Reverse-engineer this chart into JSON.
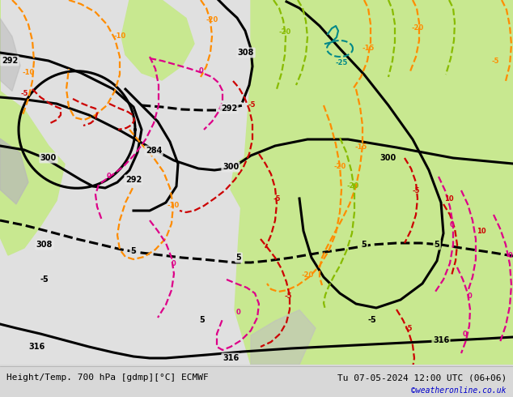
{
  "title_left": "Height/Temp. 700 hPa [gdmp][°C] ECMWF",
  "title_right": "Tu 07-05-2024 12:00 UTC (06+06)",
  "watermark": "©weatheronline.co.uk",
  "fig_width": 6.34,
  "fig_height": 4.9,
  "dpi": 100,
  "bg_color": "#d8d8d8",
  "footer_bg": "#d8d8d8",
  "black": "#000000",
  "orange": "#ff8c00",
  "red": "#cc0000",
  "magenta": "#dd0088",
  "ygreen": "#88bb00",
  "teal": "#008888",
  "footer_fontsize": 8,
  "watermark_fontsize": 7,
  "watermark_color": "#0000cc",
  "map_light_green": "#c8e890",
  "map_gray": "#b8b8b8",
  "map_white": "#f0f0f0",
  "map_mid_gray": "#c8c8c8"
}
